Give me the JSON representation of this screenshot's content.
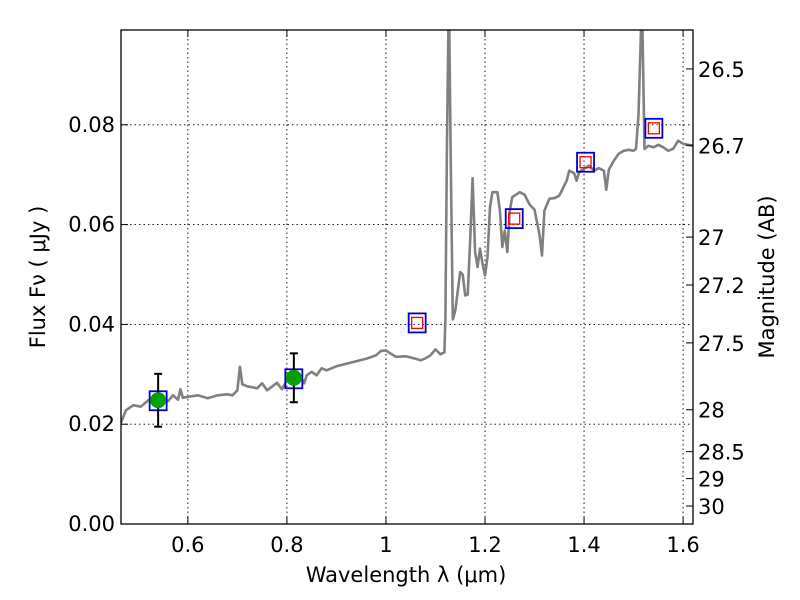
{
  "chart_data": {
    "type": "scatter",
    "xlabel": "Wavelength  λ (μm)",
    "ylabel": "Flux  Fν  ( μJy )",
    "y2label": "Magnitude (AB)",
    "xlim": [
      0.465,
      1.62
    ],
    "ylim": [
      0.0,
      0.099
    ],
    "grid": true,
    "x_ticks": [
      0.6,
      0.8,
      1.0,
      1.2,
      1.4,
      1.6
    ],
    "x_tick_labels": [
      "0.6",
      "0.8",
      "1",
      "1.2",
      "1.4",
      "1.6"
    ],
    "y_ticks": [
      0.0,
      0.02,
      0.04,
      0.06,
      0.08
    ],
    "y_tick_labels": [
      "0.00",
      "0.02",
      "0.04",
      "0.06",
      "0.08"
    ],
    "right_axis_magnitudes": [
      {
        "label": "26.5",
        "flux": 0.0912
      },
      {
        "label": "26.7",
        "flux": 0.0759
      },
      {
        "label": "27",
        "flux": 0.0575
      },
      {
        "label": "27.2",
        "flux": 0.0479
      },
      {
        "label": "27.5",
        "flux": 0.0363
      },
      {
        "label": "28",
        "flux": 0.0229
      },
      {
        "label": "28.5",
        "flux": 0.0145
      },
      {
        "label": "29",
        "flux": 0.0091
      },
      {
        "label": "30",
        "flux": 0.0036
      }
    ],
    "model_spectrum": {
      "color": "#808080",
      "points": [
        [
          0.465,
          0.0203
        ],
        [
          0.475,
          0.0228
        ],
        [
          0.49,
          0.0238
        ],
        [
          0.505,
          0.0235
        ],
        [
          0.52,
          0.0248
        ],
        [
          0.535,
          0.0255
        ],
        [
          0.55,
          0.0251
        ],
        [
          0.56,
          0.0246
        ],
        [
          0.57,
          0.0258
        ],
        [
          0.58,
          0.0249
        ],
        [
          0.585,
          0.027
        ],
        [
          0.59,
          0.0253
        ],
        [
          0.6,
          0.0255
        ],
        [
          0.62,
          0.0258
        ],
        [
          0.64,
          0.0252
        ],
        [
          0.66,
          0.0258
        ],
        [
          0.68,
          0.026
        ],
        [
          0.69,
          0.0258
        ],
        [
          0.7,
          0.0268
        ],
        [
          0.705,
          0.0315
        ],
        [
          0.71,
          0.028
        ],
        [
          0.72,
          0.0276
        ],
        [
          0.74,
          0.0272
        ],
        [
          0.75,
          0.0282
        ],
        [
          0.76,
          0.0268
        ],
        [
          0.78,
          0.0283
        ],
        [
          0.79,
          0.027
        ],
        [
          0.8,
          0.0288
        ],
        [
          0.81,
          0.0293
        ],
        [
          0.82,
          0.0287
        ],
        [
          0.83,
          0.029
        ],
        [
          0.835,
          0.0282
        ],
        [
          0.84,
          0.0298
        ],
        [
          0.85,
          0.0305
        ],
        [
          0.86,
          0.0298
        ],
        [
          0.87,
          0.0312
        ],
        [
          0.88,
          0.0308
        ],
        [
          0.9,
          0.0316
        ],
        [
          0.92,
          0.0321
        ],
        [
          0.94,
          0.0326
        ],
        [
          0.96,
          0.0331
        ],
        [
          0.98,
          0.0338
        ],
        [
          0.99,
          0.0347
        ],
        [
          1.0,
          0.0348
        ],
        [
          1.01,
          0.0341
        ],
        [
          1.02,
          0.0335
        ],
        [
          1.04,
          0.0336
        ],
        [
          1.06,
          0.0331
        ],
        [
          1.07,
          0.0328
        ],
        [
          1.08,
          0.0332
        ],
        [
          1.09,
          0.0338
        ],
        [
          1.1,
          0.035
        ],
        [
          1.11,
          0.034
        ],
        [
          1.118,
          0.0344
        ],
        [
          1.12,
          0.041
        ],
        [
          1.123,
          0.075
        ],
        [
          1.126,
          0.099
        ],
        [
          1.128,
          0.099
        ],
        [
          1.131,
          0.072
        ],
        [
          1.135,
          0.041
        ],
        [
          1.14,
          0.0428
        ],
        [
          1.15,
          0.0505
        ],
        [
          1.155,
          0.05
        ],
        [
          1.16,
          0.0458
        ],
        [
          1.165,
          0.046
        ],
        [
          1.17,
          0.0565
        ],
        [
          1.175,
          0.0693
        ],
        [
          1.18,
          0.0545
        ],
        [
          1.185,
          0.0515
        ],
        [
          1.19,
          0.0552
        ],
        [
          1.195,
          0.0522
        ],
        [
          1.2,
          0.0498
        ],
        [
          1.205,
          0.0535
        ],
        [
          1.21,
          0.0635
        ],
        [
          1.215,
          0.0665
        ],
        [
          1.225,
          0.0665
        ],
        [
          1.23,
          0.0628
        ],
        [
          1.235,
          0.0555
        ],
        [
          1.24,
          0.0588
        ],
        [
          1.245,
          0.0545
        ],
        [
          1.25,
          0.0628
        ],
        [
          1.255,
          0.0655
        ],
        [
          1.27,
          0.0665
        ],
        [
          1.28,
          0.066
        ],
        [
          1.29,
          0.064
        ],
        [
          1.3,
          0.063
        ],
        [
          1.31,
          0.058
        ],
        [
          1.315,
          0.0538
        ],
        [
          1.32,
          0.0628
        ],
        [
          1.33,
          0.0652
        ],
        [
          1.34,
          0.0653
        ],
        [
          1.35,
          0.0658
        ],
        [
          1.36,
          0.0678
        ],
        [
          1.365,
          0.0688
        ],
        [
          1.37,
          0.0708
        ],
        [
          1.38,
          0.0703
        ],
        [
          1.385,
          0.0688
        ],
        [
          1.39,
          0.0705
        ],
        [
          1.4,
          0.0712
        ],
        [
          1.41,
          0.0718
        ],
        [
          1.42,
          0.0708
        ],
        [
          1.43,
          0.0713
        ],
        [
          1.44,
          0.0708
        ],
        [
          1.445,
          0.067
        ],
        [
          1.45,
          0.071
        ],
        [
          1.46,
          0.0728
        ],
        [
          1.47,
          0.0742
        ],
        [
          1.48,
          0.0748
        ],
        [
          1.49,
          0.075
        ],
        [
          1.5,
          0.0748
        ],
        [
          1.505,
          0.0752
        ],
        [
          1.51,
          0.082
        ],
        [
          1.515,
          0.099
        ],
        [
          1.518,
          0.099
        ],
        [
          1.522,
          0.0752
        ],
        [
          1.53,
          0.0758
        ],
        [
          1.54,
          0.0755
        ],
        [
          1.55,
          0.076
        ],
        [
          1.56,
          0.0755
        ],
        [
          1.57,
          0.0748
        ],
        [
          1.58,
          0.0752
        ],
        [
          1.59,
          0.0768
        ],
        [
          1.6,
          0.0762
        ],
        [
          1.62,
          0.0758
        ]
      ]
    },
    "observed_points": [
      {
        "x": 0.54,
        "y": 0.0248,
        "yerr": 0.0053
      },
      {
        "x": 0.814,
        "y": 0.0293,
        "yerr": 0.0049
      }
    ],
    "synthetic_points": [
      {
        "x": 0.54,
        "y": 0.0247,
        "filled": true
      },
      {
        "x": 0.814,
        "y": 0.0291,
        "filled": true
      },
      {
        "x": 1.063,
        "y": 0.0403,
        "filled": false
      },
      {
        "x": 1.259,
        "y": 0.0612,
        "filled": false
      },
      {
        "x": 1.403,
        "y": 0.0725,
        "filled": false
      },
      {
        "x": 1.541,
        "y": 0.0793,
        "filled": false
      }
    ],
    "colors": {
      "model": "#808080",
      "observed": "#00a000",
      "synthetic_square": "#0000cc",
      "upper_marker": "#ff0000",
      "errorbar": "#000000",
      "grid": "#000000"
    }
  }
}
